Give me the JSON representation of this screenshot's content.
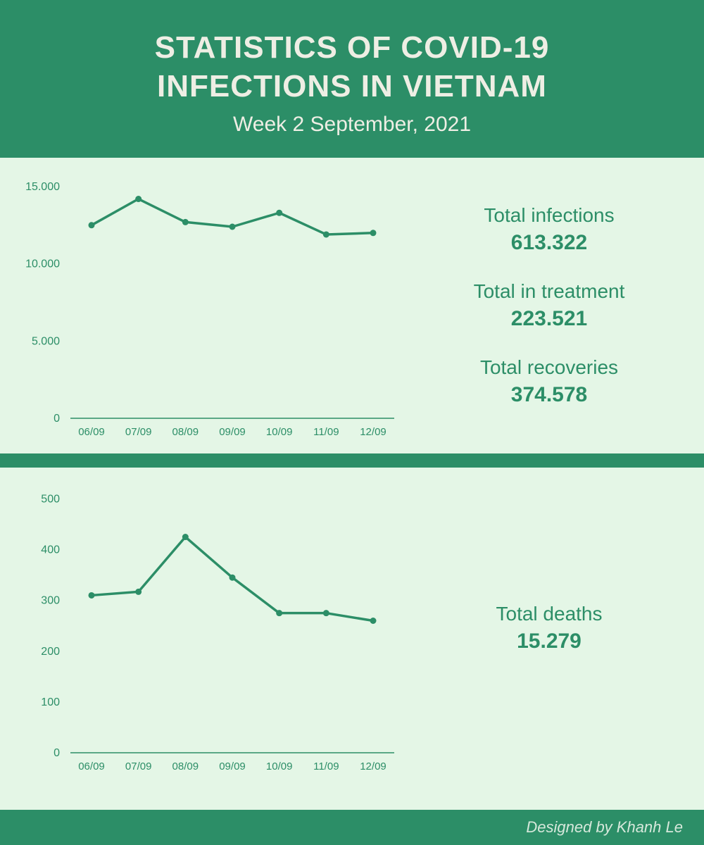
{
  "colors": {
    "dark_green": "#2c8e67",
    "light_green": "#e4f6e6",
    "text_cream": "#eeeee4",
    "text_green": "#2c8e67",
    "line": "#2c8e67",
    "axis": "#2c8e67",
    "footer_bg": "#2c8e67",
    "footer_text": "#d6e8db"
  },
  "header": {
    "title1": "STATISTICS OF COVID-19",
    "title2": "INFECTIONS IN VIETNAM",
    "subtitle": "Week 2 September, 2021"
  },
  "chart1": {
    "type": "line",
    "x_labels": [
      "06/09",
      "07/09",
      "08/09",
      "09/09",
      "10/09",
      "11/09",
      "12/09"
    ],
    "values": [
      12500,
      14200,
      12700,
      12400,
      13300,
      11900,
      12000
    ],
    "y_ticks": [
      0,
      5000,
      10000,
      15000
    ],
    "y_tick_labels": [
      "0",
      "5.000",
      "10.000",
      "15.000"
    ],
    "ylim": [
      0,
      15500
    ],
    "line_color": "#2c8e67",
    "line_width": 3.5,
    "marker_radius": 4.5
  },
  "stats1": [
    {
      "label": "Total infections",
      "value": "613.322"
    },
    {
      "label": "Total in treatment",
      "value": "223.521"
    },
    {
      "label": "Total recoveries",
      "value": "374.578"
    }
  ],
  "chart2": {
    "type": "line",
    "x_labels": [
      "06/09",
      "07/09",
      "08/09",
      "09/09",
      "10/09",
      "11/09",
      "12/09"
    ],
    "values": [
      310,
      317,
      425,
      345,
      275,
      275,
      260
    ],
    "y_ticks": [
      0,
      100,
      200,
      300,
      400,
      500
    ],
    "y_tick_labels": [
      "0",
      "100",
      "200",
      "300",
      "400",
      "500"
    ],
    "ylim": [
      0,
      520
    ],
    "line_color": "#2c8e67",
    "line_width": 3.5,
    "marker_radius": 4.5
  },
  "stats2": [
    {
      "label": "Total deaths",
      "value": "15.279"
    }
  ],
  "footer": {
    "credit": "Designed by Khanh Le"
  }
}
